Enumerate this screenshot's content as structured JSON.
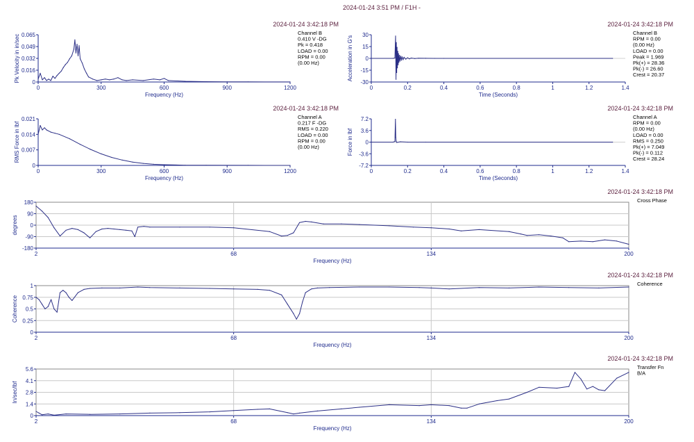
{
  "header": {
    "title": "2024-01-24 3:51 PM / F1H -"
  },
  "colors": {
    "trace": "#2b2f86",
    "axis": "#1e2a8c",
    "grid": "#c8c8c8",
    "stamp": "#5a1e3c",
    "frame": "#8a8a8a"
  },
  "panels": [
    {
      "id": "p1",
      "timestamp": "2024-01-24 3:42:18 PM",
      "ylabel": "Pk Velocity in in/sec",
      "xlabel": "Frequency (Hz)",
      "xticks": [
        "0",
        "300",
        "600",
        "900",
        "1200"
      ],
      "yticks": [
        "0.065",
        "0.049",
        "0.032",
        "0.016",
        "0"
      ],
      "info": [
        "Channel B",
        "0.410 V -DG",
        "Pk = 0.418",
        "LOAD = 0.00",
        "RPM = 0.00",
        "(0.00 Hz)"
      ]
    },
    {
      "id": "p2",
      "timestamp": "2024-01-24 3:42:18 PM",
      "ylabel": "Acceleration in G's",
      "xlabel": "Time (Seconds)",
      "xticks": [
        "0",
        "0.2",
        "0.4",
        "0.6",
        "0.8",
        "1",
        "1.2",
        "1.4"
      ],
      "yticks": [
        "30",
        "15",
        "0",
        "-15",
        "-30"
      ],
      "info": [
        "Channel B",
        "RPM = 0.00",
        "(0.00 Hz)",
        "LOAD = 0.00",
        "Peak = 1.969",
        "Pk(+) = 28.36",
        "Pk(-) = 26.60",
        "Crest = 20.37"
      ]
    },
    {
      "id": "p3",
      "timestamp": "2024-01-24 3:42:18 PM",
      "ylabel": "RMS Force in lbf",
      "xlabel": "Frequency (Hz)",
      "xticks": [
        "0",
        "300",
        "600",
        "900",
        "1200"
      ],
      "yticks": [
        "0.021",
        "0.014",
        "0.007",
        "0"
      ],
      "info": [
        "Channel A",
        "0.217 F -DG",
        "RMS = 0.220",
        "LOAD = 0.00",
        "RPM = 0.00",
        "(0.00 Hz)"
      ]
    },
    {
      "id": "p4",
      "timestamp": "2024-01-24 3:42:18 PM",
      "ylabel": "Force in lbf",
      "xlabel": "Time (Seconds)",
      "xticks": [
        "0",
        "0.2",
        "0.4",
        "0.6",
        "0.8",
        "1",
        "1.2",
        "1.4"
      ],
      "yticks": [
        "7.2",
        "3.6",
        "0",
        "-3.6",
        "-7.2"
      ],
      "info": [
        "Channel A",
        "RPM = 0.00",
        "(0.00 Hz)",
        "LOAD = 0.00",
        "RMS = 0.250",
        "Pk(+) = 7.049",
        "Pk(-) = 0.112",
        "Crest = 28.24"
      ]
    },
    {
      "id": "p5",
      "timestamp": "2024-01-24 3:42:18 PM",
      "ylabel": "degrees",
      "xlabel": "Frequency (Hz)",
      "xticks": [
        "2",
        "68",
        "134",
        "200"
      ],
      "yticks": [
        "180",
        "90",
        "0",
        "-90",
        "-180"
      ],
      "info": [
        "Cross Phase"
      ]
    },
    {
      "id": "p6",
      "timestamp": "2024-01-24 3:42:18 PM",
      "ylabel": "Coherence",
      "xlabel": "Frequency (Hz)",
      "xticks": [
        "2",
        "68",
        "134",
        "200"
      ],
      "yticks": [
        "1",
        "0.75",
        "0.5",
        "0.25",
        "0"
      ],
      "info": [
        "Coherence"
      ]
    },
    {
      "id": "p7",
      "timestamp": "2024-01-24 3:42:18 PM",
      "ylabel": "In/sec/lbf",
      "xlabel": "Frequency (Hz)",
      "xticks": [
        "2",
        "68",
        "134",
        "200"
      ],
      "yticks": [
        "5.6",
        "4.1",
        "2.8",
        "1.4",
        "0"
      ],
      "info": [
        "Transfer Fn",
        "B/A"
      ]
    }
  ],
  "chart_data": [
    {
      "type": "line",
      "title": "",
      "xlabel": "Frequency (Hz)",
      "ylabel": "Pk Velocity in in/sec",
      "xlim": [
        0,
        1200
      ],
      "ylim": [
        0,
        0.065
      ],
      "x": [
        0,
        10,
        20,
        30,
        40,
        50,
        60,
        70,
        80,
        90,
        100,
        110,
        120,
        130,
        140,
        150,
        160,
        170,
        175,
        180,
        185,
        190,
        195,
        200,
        210,
        220,
        230,
        240,
        260,
        280,
        300,
        320,
        340,
        360,
        380,
        400,
        420,
        450,
        500,
        550,
        580,
        600,
        620,
        700,
        800,
        900,
        1000,
        1200
      ],
      "series": [
        {
          "values": [
            0.004,
            0.012,
            0.003,
            0.006,
            0.002,
            0.004,
            0.002,
            0.008,
            0.005,
            0.009,
            0.012,
            0.015,
            0.02,
            0.024,
            0.027,
            0.032,
            0.036,
            0.045,
            0.058,
            0.04,
            0.052,
            0.036,
            0.05,
            0.032,
            0.026,
            0.018,
            0.012,
            0.007,
            0.004,
            0.002,
            0.003,
            0.004,
            0.003,
            0.004,
            0.006,
            0.003,
            0.002,
            0.003,
            0.002,
            0.004,
            0.003,
            0.005,
            0.002,
            0.001,
            0.0005,
            0.0003,
            0.0002,
            0.0001
          ]
        }
      ]
    },
    {
      "type": "line",
      "title": "",
      "xlabel": "Time (Seconds)",
      "ylabel": "Acceleration in G's",
      "xlim": [
        0,
        1.4
      ],
      "ylim": [
        -30,
        30
      ],
      "x": [
        0,
        0.12,
        0.13,
        0.134,
        0.136,
        0.138,
        0.14,
        0.142,
        0.144,
        0.146,
        0.148,
        0.15,
        0.152,
        0.155,
        0.158,
        0.162,
        0.166,
        0.17,
        0.175,
        0.18,
        0.19,
        0.2,
        0.21,
        0.22,
        0.24,
        0.26,
        0.3,
        0.35,
        0.4,
        1.33
      ],
      "series": [
        {
          "values": [
            0,
            0,
            0.5,
            28.36,
            -26.6,
            20,
            -18,
            14,
            -12,
            9,
            -8,
            6,
            -5,
            4,
            -3.5,
            3,
            -2.5,
            2,
            -1.8,
            1.4,
            -1,
            0.8,
            -0.6,
            0.4,
            -0.3,
            0.2,
            0.1,
            0,
            0,
            0
          ]
        }
      ]
    },
    {
      "type": "line",
      "title": "",
      "xlabel": "Frequency (Hz)",
      "ylabel": "RMS Force in lbf",
      "xlim": [
        0,
        1200
      ],
      "ylim": [
        0,
        0.021
      ],
      "x": [
        0,
        10,
        20,
        30,
        40,
        60,
        80,
        100,
        150,
        200,
        250,
        300,
        350,
        400,
        450,
        500,
        550,
        600,
        700,
        800,
        1000,
        1200
      ],
      "series": [
        {
          "values": [
            0.014,
            0.018,
            0.016,
            0.017,
            0.016,
            0.015,
            0.0145,
            0.014,
            0.012,
            0.0095,
            0.0072,
            0.0052,
            0.0036,
            0.0024,
            0.0015,
            0.0009,
            0.0005,
            0.0003,
            0.0001,
            5e-05,
            2e-05,
            1e-05
          ]
        }
      ]
    },
    {
      "type": "line",
      "title": "",
      "xlabel": "Time (Seconds)",
      "ylabel": "Force in lbf",
      "xlim": [
        0,
        1.4
      ],
      "ylim": [
        -7.2,
        7.2
      ],
      "x": [
        0,
        0.12,
        0.13,
        0.133,
        0.135,
        0.137,
        0.14,
        0.16,
        0.2,
        0.3,
        1.33
      ],
      "series": [
        {
          "values": [
            0,
            0,
            0.2,
            7.049,
            1.5,
            0.3,
            -0.112,
            0.1,
            0,
            0,
            0
          ]
        }
      ]
    },
    {
      "type": "line",
      "title": "",
      "xlabel": "Frequency (Hz)",
      "ylabel": "degrees",
      "xlim": [
        2,
        200
      ],
      "ylim": [
        -180,
        180
      ],
      "x": [
        2,
        4,
        6,
        8,
        10,
        12,
        14,
        16,
        18,
        20,
        22,
        24,
        26,
        28,
        30,
        32,
        34,
        35,
        36,
        38,
        40,
        50,
        60,
        68,
        80,
        84,
        86,
        88,
        90,
        92,
        94,
        98,
        104,
        110,
        120,
        128,
        134,
        140,
        144,
        150,
        160,
        164,
        166,
        170,
        174,
        178,
        180,
        184,
        188,
        192,
        196,
        200
      ],
      "series": [
        {
          "values": [
            150,
            110,
            60,
            -20,
            -85,
            -40,
            -25,
            -35,
            -60,
            -100,
            -50,
            -30,
            -25,
            -30,
            -35,
            -40,
            -45,
            -90,
            -15,
            -10,
            -15,
            -15,
            -15,
            -20,
            -50,
            -85,
            -80,
            -60,
            20,
            30,
            25,
            10,
            10,
            5,
            -5,
            -15,
            -20,
            -30,
            -45,
            -35,
            -50,
            -70,
            -80,
            -75,
            -85,
            -100,
            -130,
            -125,
            -130,
            -115,
            -125,
            -150
          ]
        }
      ]
    },
    {
      "type": "line",
      "title": "",
      "xlabel": "Frequency (Hz)",
      "ylabel": "Coherence",
      "xlim": [
        2,
        200
      ],
      "ylim": [
        0,
        1
      ],
      "x": [
        2,
        3,
        4,
        5,
        6,
        7,
        8,
        9,
        10,
        11,
        12,
        13,
        14,
        16,
        18,
        20,
        24,
        30,
        36,
        40,
        50,
        60,
        68,
        76,
        80,
        84,
        86,
        88,
        89,
        90,
        91,
        92,
        94,
        96,
        100,
        110,
        120,
        130,
        134,
        140,
        150,
        160,
        170,
        180,
        190,
        200
      ],
      "series": [
        {
          "values": [
            0.75,
            0.7,
            0.6,
            0.5,
            0.55,
            0.7,
            0.5,
            0.43,
            0.85,
            0.9,
            0.85,
            0.75,
            0.68,
            0.85,
            0.92,
            0.94,
            0.95,
            0.95,
            0.97,
            0.96,
            0.95,
            0.94,
            0.93,
            0.92,
            0.9,
            0.8,
            0.6,
            0.4,
            0.28,
            0.4,
            0.65,
            0.85,
            0.93,
            0.95,
            0.96,
            0.97,
            0.97,
            0.96,
            0.95,
            0.93,
            0.96,
            0.95,
            0.97,
            0.96,
            0.95,
            0.97
          ]
        }
      ]
    },
    {
      "type": "line",
      "title": "",
      "xlabel": "Frequency (Hz)",
      "ylabel": "In/sec/lbf",
      "xlim": [
        2,
        200
      ],
      "ylim": [
        0,
        5.6
      ],
      "x": [
        2,
        3,
        4,
        6,
        8,
        12,
        20,
        30,
        40,
        50,
        60,
        68,
        76,
        80,
        86,
        88,
        90,
        96,
        104,
        110,
        120,
        130,
        134,
        140,
        144,
        146,
        150,
        156,
        160,
        166,
        170,
        176,
        180,
        182,
        184,
        186,
        188,
        190,
        192,
        196,
        200
      ],
      "series": [
        {
          "values": [
            0.5,
            0.3,
            0.1,
            0.2,
            0.05,
            0.2,
            0.15,
            0.2,
            0.3,
            0.35,
            0.45,
            0.6,
            0.75,
            0.8,
            0.35,
            0.2,
            0.3,
            0.55,
            0.8,
            1.0,
            1.3,
            1.2,
            1.3,
            1.2,
            0.9,
            0.9,
            1.4,
            1.8,
            2.0,
            2.8,
            3.4,
            3.3,
            3.5,
            5.2,
            4.4,
            3.2,
            3.5,
            3.1,
            3.0,
            4.5,
            5.2
          ]
        }
      ]
    }
  ]
}
